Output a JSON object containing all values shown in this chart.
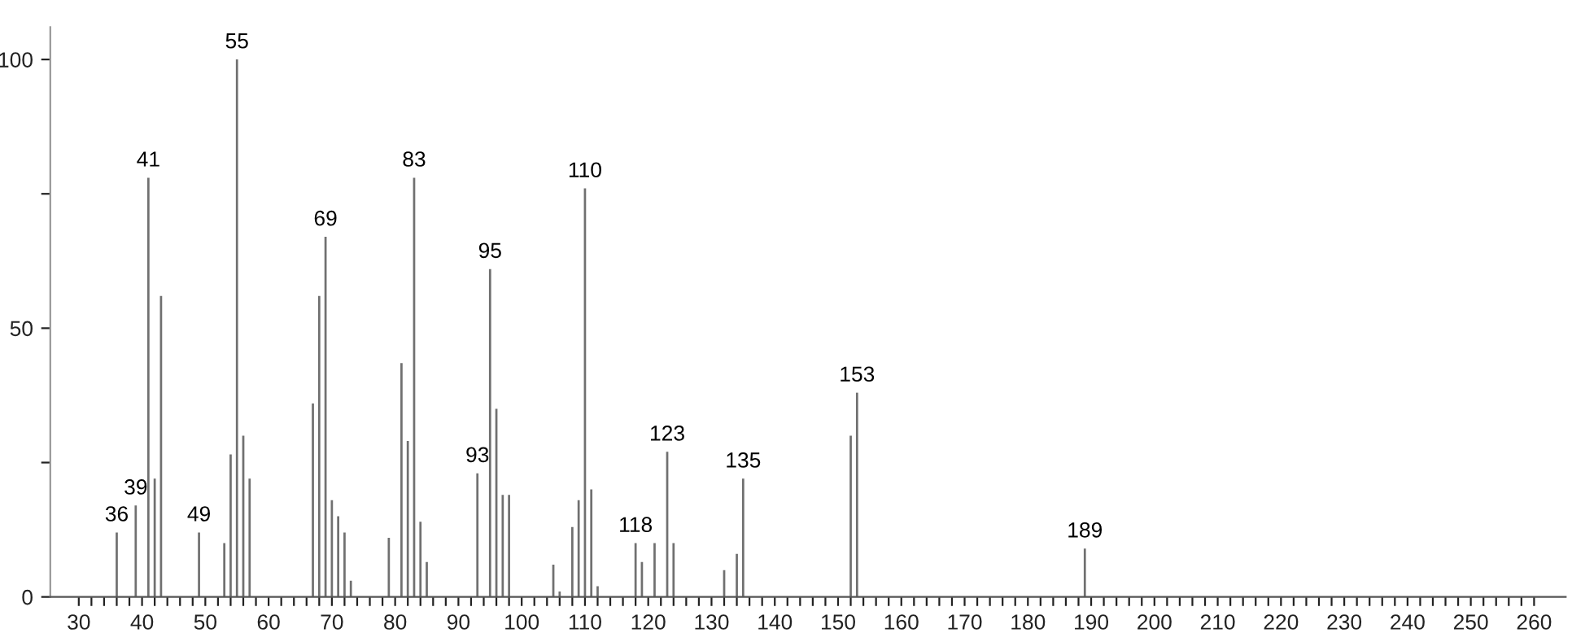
{
  "chart_data": {
    "type": "bar",
    "x": [
      36,
      39,
      41,
      42,
      43,
      49,
      53,
      54,
      55,
      56,
      57,
      67,
      68,
      69,
      70,
      71,
      72,
      73,
      79,
      81,
      82,
      83,
      84,
      85,
      93,
      95,
      96,
      97,
      98,
      105,
      106,
      108,
      109,
      110,
      111,
      112,
      118,
      119,
      121,
      123,
      124,
      132,
      134,
      135,
      152,
      153,
      189
    ],
    "values": [
      12,
      17,
      78,
      22,
      56,
      12,
      10,
      26.5,
      100,
      30,
      22,
      36,
      56,
      67,
      18,
      15,
      12,
      3,
      11,
      43.5,
      29,
      78,
      14,
      6.5,
      23,
      61,
      35,
      19,
      19,
      6,
      1,
      13,
      18,
      76,
      20,
      2,
      10,
      6.5,
      10,
      27,
      10,
      5,
      8,
      22,
      30,
      38,
      9
    ],
    "color": "#707070",
    "xlim": [
      25.5,
      265
    ],
    "ylim": [
      0,
      106
    ],
    "xticks": [
      30,
      {
        "value": 32,
        "label": null
      },
      {
        "value": 34,
        "label": null
      },
      {
        "value": 36,
        "label": null
      },
      {
        "value": 38,
        "label": null
      },
      40,
      {
        "value": 42,
        "label": null
      },
      {
        "value": 44,
        "label": null
      },
      {
        "value": 46,
        "label": null
      },
      {
        "value": 48,
        "label": null
      },
      50,
      {
        "value": 52,
        "label": null
      },
      {
        "value": 54,
        "label": null
      },
      {
        "value": 56,
        "label": null
      },
      {
        "value": 58,
        "label": null
      },
      60,
      {
        "value": 62,
        "label": null
      },
      {
        "value": 64,
        "label": null
      },
      {
        "value": 66,
        "label": null
      },
      {
        "value": 68,
        "label": null
      },
      70,
      {
        "value": 72,
        "label": null
      },
      {
        "value": 74,
        "label": null
      },
      {
        "value": 76,
        "label": null
      },
      {
        "value": 78,
        "label": null
      },
      80,
      {
        "value": 82,
        "label": null
      },
      {
        "value": 84,
        "label": null
      },
      {
        "value": 86,
        "label": null
      },
      {
        "value": 88,
        "label": null
      },
      90,
      {
        "value": 92,
        "label": null
      },
      {
        "value": 94,
        "label": null
      },
      {
        "value": 96,
        "label": null
      },
      {
        "value": 98,
        "label": null
      },
      100,
      {
        "value": 102,
        "label": null
      },
      {
        "value": 104,
        "label": null
      },
      {
        "value": 106,
        "label": null
      },
      {
        "value": 108,
        "label": null
      },
      110,
      {
        "value": 112,
        "label": null
      },
      {
        "value": 114,
        "label": null
      },
      {
        "value": 116,
        "label": null
      },
      {
        "value": 118,
        "label": null
      },
      120,
      {
        "value": 122,
        "label": null
      },
      {
        "value": 124,
        "label": null
      },
      {
        "value": 126,
        "label": null
      },
      {
        "value": 128,
        "label": null
      },
      130,
      {
        "value": 132,
        "label": null
      },
      {
        "value": 134,
        "label": null
      },
      {
        "value": 136,
        "label": null
      },
      {
        "value": 138,
        "label": null
      },
      140,
      {
        "value": 142,
        "label": null
      },
      {
        "value": 144,
        "label": null
      },
      {
        "value": 146,
        "label": null
      },
      {
        "value": 148,
        "label": null
      },
      150,
      {
        "value": 152,
        "label": null
      },
      {
        "value": 154,
        "label": null
      },
      {
        "value": 156,
        "label": null
      },
      {
        "value": 158,
        "label": null
      },
      160,
      {
        "value": 162,
        "label": null
      },
      {
        "value": 164,
        "label": null
      },
      {
        "value": 166,
        "label": null
      },
      {
        "value": 168,
        "label": null
      },
      170,
      {
        "value": 172,
        "label": null
      },
      {
        "value": 174,
        "label": null
      },
      {
        "value": 176,
        "label": null
      },
      {
        "value": 178,
        "label": null
      },
      180,
      {
        "value": 182,
        "label": null
      },
      {
        "value": 184,
        "label": null
      },
      {
        "value": 186,
        "label": null
      },
      {
        "value": 188,
        "label": null
      },
      190,
      {
        "value": 192,
        "label": null
      },
      {
        "value": 194,
        "label": null
      },
      {
        "value": 196,
        "label": null
      },
      {
        "value": 198,
        "label": null
      },
      200,
      {
        "value": 202,
        "label": null
      },
      {
        "value": 204,
        "label": null
      },
      {
        "value": 206,
        "label": null
      },
      {
        "value": 208,
        "label": null
      },
      210,
      {
        "value": 212,
        "label": null
      },
      {
        "value": 214,
        "label": null
      },
      {
        "value": 216,
        "label": null
      },
      {
        "value": 218,
        "label": null
      },
      220,
      {
        "value": 222,
        "label": null
      },
      {
        "value": 224,
        "label": null
      },
      {
        "value": 226,
        "label": null
      },
      {
        "value": 228,
        "label": null
      },
      230,
      {
        "value": 232,
        "label": null
      },
      {
        "value": 234,
        "label": null
      },
      {
        "value": 236,
        "label": null
      },
      {
        "value": 238,
        "label": null
      },
      240,
      {
        "value": 242,
        "label": null
      },
      {
        "value": 244,
        "label": null
      },
      {
        "value": 246,
        "label": null
      },
      {
        "value": 248,
        "label": null
      },
      250,
      {
        "value": 252,
        "label": null
      },
      {
        "value": 254,
        "label": null
      },
      {
        "value": 256,
        "label": null
      },
      {
        "value": 258,
        "label": null
      },
      260
    ],
    "yticks": [
      0,
      {
        "value": 25,
        "label": null
      },
      50,
      {
        "value": 75,
        "label": null
      },
      100
    ],
    "annotations": [
      {
        "text": "36",
        "x": 36,
        "y": 12
      },
      {
        "text": "39",
        "x": 39,
        "y": 17
      },
      {
        "text": "41",
        "x": 41,
        "y": 78
      },
      {
        "text": "49",
        "x": 49,
        "y": 12
      },
      {
        "text": "55",
        "x": 55,
        "y": 100
      },
      {
        "text": "69",
        "x": 69,
        "y": 67
      },
      {
        "text": "83",
        "x": 83,
        "y": 78
      },
      {
        "text": "93",
        "x": 93,
        "y": 23
      },
      {
        "text": "95",
        "x": 95,
        "y": 61
      },
      {
        "text": "110",
        "x": 110,
        "y": 76
      },
      {
        "text": "118",
        "x": 118,
        "y": 10
      },
      {
        "text": "123",
        "x": 123,
        "y": 27
      },
      {
        "text": "135",
        "x": 135,
        "y": 22
      },
      {
        "text": "153",
        "x": 153,
        "y": 38
      },
      {
        "text": "189",
        "x": 189,
        "y": 9
      }
    ]
  }
}
